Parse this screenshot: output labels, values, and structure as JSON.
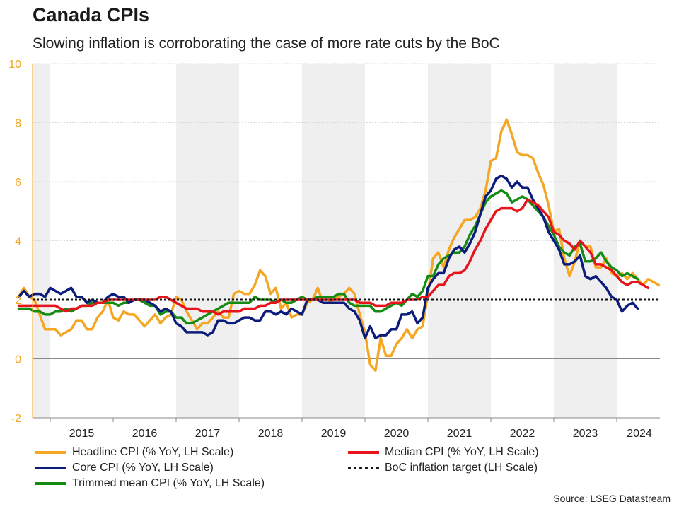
{
  "header": {
    "title": "Canada CPIs",
    "subtitle": "Slowing inflation is corroborating the case of more rate cuts by the BoC"
  },
  "source": "Source: LSEG Datastream",
  "colors": {
    "headline": "#F5A623",
    "median": "#E8141B",
    "core": "#0B1C7A",
    "target": "#111111",
    "trimmed": "#148C14",
    "y_axis_labels": "#F5A623",
    "band": "#EFEFEF"
  },
  "chart_data": {
    "type": "line",
    "ylim": [
      -2,
      10
    ],
    "yticks": [
      -2,
      0,
      2,
      4,
      6,
      8,
      10
    ],
    "x_tick_labels": [
      "2015",
      "2016",
      "2017",
      "2018",
      "2019",
      "2020",
      "2021",
      "2022",
      "2023",
      "2024"
    ],
    "x_start": "2014-07",
    "frequency": "monthly",
    "shaded_bands": "alternating years, including 2014 portion",
    "grid": "light dotted horizontal gridlines, solid zero line",
    "legend_position": "bottom",
    "series": [
      {
        "key": "headline",
        "name": "Headline CPI (% YoY, LH Scale)",
        "values": [
          2.1,
          2.4,
          2.1,
          2.0,
          1.5,
          1.0,
          1.0,
          1.0,
          0.8,
          0.9,
          1.0,
          1.3,
          1.3,
          1.0,
          1.0,
          1.4,
          1.6,
          2.0,
          1.4,
          1.3,
          1.6,
          1.5,
          1.5,
          1.3,
          1.1,
          1.3,
          1.5,
          1.2,
          1.4,
          1.5,
          2.1,
          2.0,
          1.6,
          1.3,
          1.0,
          1.2,
          1.2,
          1.4,
          1.6,
          1.4,
          1.4,
          2.2,
          2.3,
          2.2,
          2.2,
          2.5,
          3.0,
          2.8,
          2.2,
          2.4,
          1.7,
          1.9,
          1.4,
          1.5,
          1.5,
          1.9,
          2.0,
          2.4,
          1.9,
          1.9,
          2.0,
          2.1,
          2.2,
          2.4,
          2.2,
          1.5,
          0.9,
          -0.2,
          -0.4,
          0.7,
          0.1,
          0.1,
          0.5,
          0.7,
          1.0,
          0.7,
          1.0,
          1.1,
          2.2,
          3.4,
          3.6,
          3.1,
          3.7,
          4.1,
          4.4,
          4.7,
          4.7,
          4.8,
          5.1,
          5.7,
          6.7,
          6.8,
          7.7,
          8.1,
          7.6,
          7.0,
          6.9,
          6.9,
          6.8,
          6.3,
          5.9,
          5.2,
          4.3,
          4.4,
          3.4,
          2.8,
          3.3,
          4.0,
          3.8,
          3.8,
          3.1,
          3.1,
          3.4,
          2.9,
          2.8,
          2.9,
          2.7,
          2.9,
          2.7,
          2.5,
          2.7,
          2.6,
          2.5
        ]
      },
      {
        "key": "median",
        "name": "Median CPI (% YoY, LH Scale)",
        "values": [
          1.8,
          1.8,
          1.8,
          1.8,
          1.8,
          1.8,
          1.8,
          1.8,
          1.7,
          1.6,
          1.7,
          1.7,
          1.8,
          1.8,
          1.8,
          1.9,
          1.9,
          2.0,
          2.0,
          2.0,
          2.0,
          2.0,
          2.0,
          2.0,
          2.0,
          2.0,
          2.0,
          2.1,
          2.1,
          2.0,
          1.9,
          1.8,
          1.7,
          1.7,
          1.7,
          1.6,
          1.6,
          1.6,
          1.5,
          1.6,
          1.6,
          1.6,
          1.6,
          1.7,
          1.7,
          1.7,
          1.8,
          1.8,
          1.9,
          1.9,
          2.0,
          2.0,
          2.0,
          2.0,
          2.0,
          2.0,
          2.0,
          2.0,
          2.0,
          2.0,
          2.0,
          2.0,
          2.0,
          2.0,
          2.0,
          1.9,
          1.9,
          1.9,
          1.8,
          1.8,
          1.8,
          1.9,
          1.9,
          1.9,
          2.0,
          2.0,
          2.0,
          2.1,
          2.1,
          2.3,
          2.5,
          2.5,
          2.8,
          2.9,
          2.9,
          3.0,
          3.3,
          3.7,
          4.0,
          4.4,
          4.7,
          5.0,
          5.1,
          5.1,
          5.1,
          5.0,
          5.1,
          5.4,
          5.3,
          5.2,
          5.0,
          4.8,
          4.3,
          4.2,
          4.0,
          3.9,
          3.7,
          4.0,
          3.8,
          3.6,
          3.2,
          3.2,
          3.1,
          3.0,
          2.8,
          2.6,
          2.5,
          2.6,
          2.6,
          2.5,
          2.4
        ]
      },
      {
        "key": "core",
        "name": "Core CPI (% YoY, LH Scale)",
        "values": [
          2.1,
          2.3,
          2.1,
          2.2,
          2.2,
          2.1,
          2.4,
          2.3,
          2.2,
          2.3,
          2.4,
          2.1,
          2.1,
          1.9,
          2.0,
          1.9,
          1.9,
          2.1,
          2.2,
          2.1,
          2.1,
          1.9,
          2.0,
          2.0,
          2.0,
          1.9,
          1.8,
          1.6,
          1.7,
          1.6,
          1.2,
          1.1,
          0.9,
          0.9,
          0.9,
          0.9,
          0.8,
          0.9,
          1.3,
          1.3,
          1.2,
          1.2,
          1.3,
          1.4,
          1.4,
          1.3,
          1.3,
          1.6,
          1.6,
          1.5,
          1.6,
          1.5,
          1.7,
          1.6,
          1.5,
          2.0,
          2.0,
          2.0,
          1.9,
          1.9,
          1.9,
          1.9,
          1.9,
          1.7,
          1.6,
          1.3,
          0.7,
          1.1,
          0.7,
          0.8,
          0.8,
          1.0,
          1.0,
          1.5,
          1.5,
          1.6,
          1.2,
          1.4,
          2.4,
          2.7,
          2.9,
          2.9,
          3.4,
          3.7,
          3.8,
          3.6,
          3.9,
          4.3,
          4.9,
          5.5,
          5.7,
          6.1,
          6.2,
          6.1,
          5.8,
          6.0,
          5.8,
          5.8,
          5.4,
          5.1,
          4.8,
          4.3,
          4.0,
          3.7,
          3.2,
          3.2,
          3.3,
          3.5,
          2.8,
          2.7,
          2.8,
          2.6,
          2.4,
          2.1,
          2.0,
          1.6,
          1.8,
          1.9,
          1.7
        ]
      },
      {
        "key": "target",
        "name": "BoC inflation target (LH Scale)",
        "constant": 2.0,
        "style": "dotted"
      },
      {
        "key": "trimmed",
        "name": "Trimmed mean CPI (% YoY, LH Scale)",
        "values": [
          1.7,
          1.7,
          1.7,
          1.6,
          1.6,
          1.5,
          1.5,
          1.6,
          1.6,
          1.7,
          1.6,
          1.7,
          1.8,
          1.8,
          1.9,
          1.9,
          1.9,
          1.9,
          1.9,
          1.8,
          1.9,
          1.9,
          2.0,
          2.0,
          1.9,
          1.8,
          1.8,
          1.5,
          1.6,
          1.6,
          1.4,
          1.4,
          1.2,
          1.2,
          1.3,
          1.4,
          1.5,
          1.6,
          1.7,
          1.8,
          1.9,
          1.9,
          1.9,
          1.9,
          1.9,
          2.1,
          2.0,
          2.0,
          2.0,
          1.9,
          2.0,
          1.9,
          1.9,
          2.0,
          2.1,
          2.0,
          2.0,
          2.1,
          2.1,
          2.1,
          2.1,
          2.2,
          2.2,
          1.9,
          1.8,
          1.8,
          1.8,
          1.8,
          1.6,
          1.6,
          1.7,
          1.8,
          1.9,
          1.8,
          2.0,
          2.2,
          2.1,
          2.3,
          2.8,
          2.8,
          3.2,
          3.4,
          3.5,
          3.6,
          3.6,
          3.8,
          4.2,
          4.5,
          4.9,
          5.3,
          5.5,
          5.6,
          5.7,
          5.6,
          5.3,
          5.4,
          5.5,
          5.4,
          5.2,
          5.0,
          4.8,
          4.5,
          4.2,
          3.8,
          3.6,
          3.5,
          3.8,
          3.9,
          3.3,
          3.3,
          3.4,
          3.6,
          3.3,
          3.1,
          3.0,
          2.8,
          2.9,
          2.8,
          2.7
        ]
      }
    ]
  }
}
